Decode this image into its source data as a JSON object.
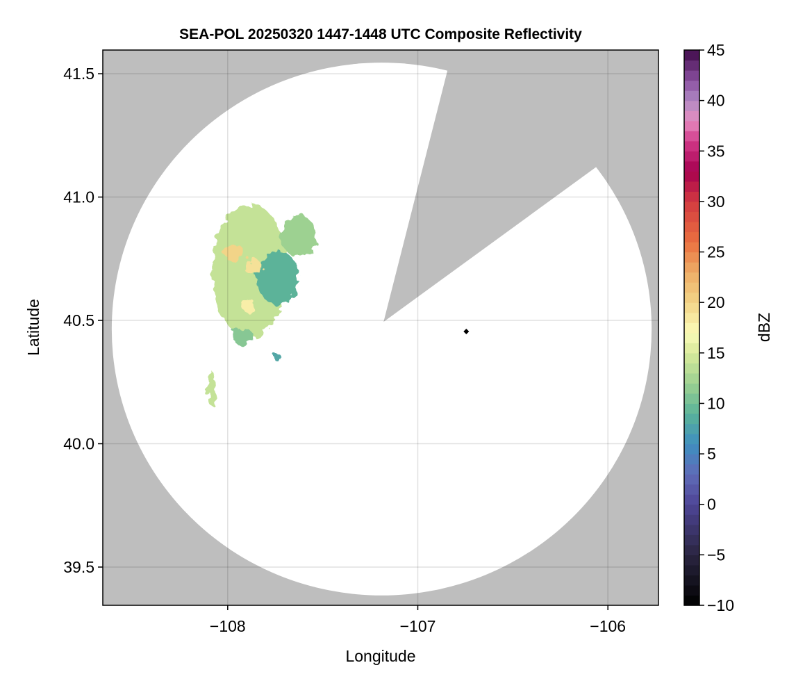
{
  "chart_data": {
    "type": "heatmap",
    "title": "SEA-POL 20250320 1447-1448 UTC Composite Reflectivity",
    "xlabel": "Longitude",
    "ylabel": "Latitude",
    "xlim": [
      -108.657,
      -105.734
    ],
    "ylim": [
      39.345,
      41.596
    ],
    "xticks": [
      -108,
      -107,
      -106
    ],
    "xtick_labels": [
      "−108",
      "−107",
      "−106"
    ],
    "yticks": [
      39.5,
      40.0,
      40.5,
      41.0,
      41.5
    ],
    "ytick_labels": [
      "39.5",
      "40.0",
      "40.5",
      "41.0",
      "41.5"
    ],
    "grid": true,
    "colors": {
      "outside_coverage": "#bebebe",
      "coverage": "#ffffff",
      "grid": "#d9d9d9"
    },
    "radar": {
      "lon": -107.19,
      "lat": 40.465,
      "range_lon_deg": 1.42,
      "range_lat_deg": 1.08
    },
    "blocked_sector": {
      "apex": [
        -107.18,
        40.494
      ],
      "edge1": [
        -106.84,
        41.525
      ],
      "edge2": [
        -106.065,
        41.12
      ]
    },
    "marker": {
      "lon": -106.745,
      "lat": 40.455,
      "shape": "diamond",
      "color": "#000000"
    },
    "echoes": [
      {
        "lon": -107.883,
        "lat": 40.701,
        "rlon": 0.2,
        "rlat": 0.27,
        "dbz": 14
      },
      {
        "lon": -107.628,
        "lat": 40.842,
        "rlon": 0.09,
        "rlat": 0.085,
        "dbz": 12
      },
      {
        "lon": -107.737,
        "lat": 40.673,
        "rlon": 0.11,
        "rlat": 0.11,
        "dbz": 9
      },
      {
        "lon": -107.964,
        "lat": 40.772,
        "rlon": 0.055,
        "rlat": 0.034,
        "dbz": 20
      },
      {
        "lon": -107.865,
        "lat": 40.715,
        "rlon": 0.044,
        "rlat": 0.034,
        "dbz": 19
      },
      {
        "lon": -107.891,
        "lat": 40.561,
        "rlon": 0.036,
        "rlat": 0.028,
        "dbz": 18
      },
      {
        "lon": -107.92,
        "lat": 40.434,
        "rlon": 0.055,
        "rlat": 0.034,
        "dbz": 11
      },
      {
        "lon": -108.084,
        "lat": 40.223,
        "rlon": 0.022,
        "rlat": 0.07,
        "dbz": 14
      },
      {
        "lon": -107.737,
        "lat": 40.349,
        "rlon": 0.02,
        "rlat": 0.015,
        "dbz": 8
      }
    ],
    "colorbar": {
      "label": "dBZ",
      "range": [
        -10,
        45
      ],
      "step": 1,
      "ticks": [
        -10,
        -5,
        0,
        5,
        10,
        15,
        20,
        25,
        30,
        35,
        40,
        45
      ],
      "tick_labels": [
        "−10",
        "−5",
        "0",
        "5",
        "10",
        "15",
        "20",
        "25",
        "30",
        "35",
        "40",
        "45"
      ],
      "color_stops": [
        [
          -10,
          "#000000"
        ],
        [
          -5,
          "#2a2540"
        ],
        [
          0,
          "#4e4596"
        ],
        [
          3,
          "#5f6bb8"
        ],
        [
          6,
          "#3f8fbf"
        ],
        [
          9,
          "#5bb399"
        ],
        [
          12,
          "#9dd191"
        ],
        [
          15,
          "#d8ea9a"
        ],
        [
          17,
          "#fbfbb8"
        ],
        [
          20,
          "#f2d488"
        ],
        [
          23,
          "#eead66"
        ],
        [
          26,
          "#ea7040"
        ],
        [
          30,
          "#d23a40"
        ],
        [
          33,
          "#a6004f"
        ],
        [
          36,
          "#d23a8a"
        ],
        [
          38,
          "#e68cc0"
        ],
        [
          40,
          "#b08ac4"
        ],
        [
          42,
          "#8a4fa0"
        ],
        [
          45,
          "#3f0a4a"
        ]
      ]
    }
  }
}
